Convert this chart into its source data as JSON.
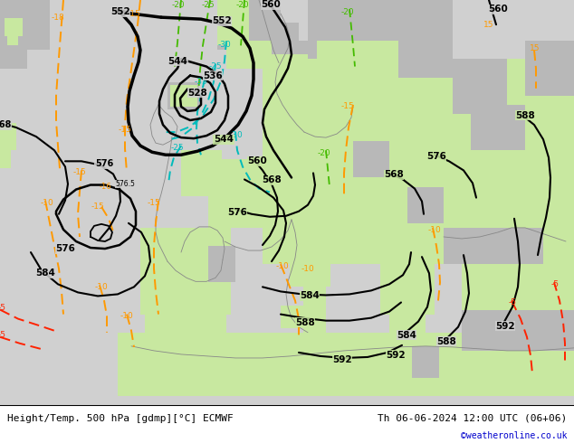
{
  "title_left": "Height/Temp. 500 hPa [gdmp][°C] ECMWF",
  "title_right": "Th 06-06-2024 12:00 UTC (06+06)",
  "watermark": "©weatheronline.co.uk",
  "bg_ocean": "#d8d8d8",
  "bg_land_green": "#c8e8a0",
  "bg_land_gray": "#b8b8b8",
  "footer_text_color": "#000000",
  "watermark_color": "#0000cc",
  "fig_width": 6.34,
  "fig_height": 4.9,
  "dpi": 100
}
